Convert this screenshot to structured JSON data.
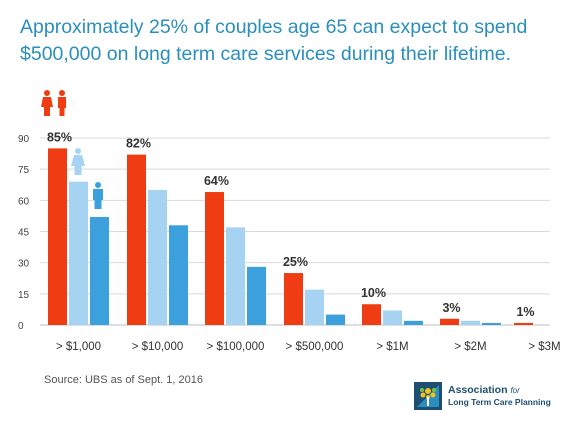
{
  "title": {
    "line1": "Approximately 25% of couples age 65 can expect to spend",
    "line2": "$500,000 on long term care services during their lifetime."
  },
  "source": "Source: UBS as of Sept. 1, 2016",
  "logo": {
    "line1": "Association",
    "line1_suffix": "for",
    "line2": "Long Term Care Planning"
  },
  "icons": {
    "couple": "couple-icon",
    "woman": "woman-icon",
    "man": "man-icon"
  },
  "colors": {
    "couple": "#f03c13",
    "woman": "#a6d3f1",
    "man": "#3ca0dc",
    "title": "#2a8fbf",
    "grid": "#d9d9d9"
  },
  "chart_data": {
    "type": "bar",
    "categories": [
      "> $1,000",
      "> $10,000",
      "> $100,000",
      "> $500,000",
      "> $1M",
      "> $2M",
      "> $3M"
    ],
    "series": [
      {
        "values": [
          85,
          82,
          64,
          25,
          10,
          3,
          1
        ]
      },
      {
        "values": [
          69,
          65,
          47,
          17,
          7,
          2,
          0
        ]
      },
      {
        "values": [
          52,
          48,
          28,
          5,
          2,
          1,
          0
        ]
      }
    ],
    "data_labels": [
      "85%",
      "82%",
      "64%",
      "25%",
      "10%",
      "3%",
      "1%"
    ],
    "yticks": [
      "90",
      "75",
      "60",
      "45",
      "30",
      "15",
      "0"
    ],
    "ylim": [
      0,
      90
    ],
    "grid": true,
    "legend": "icons above first category"
  }
}
